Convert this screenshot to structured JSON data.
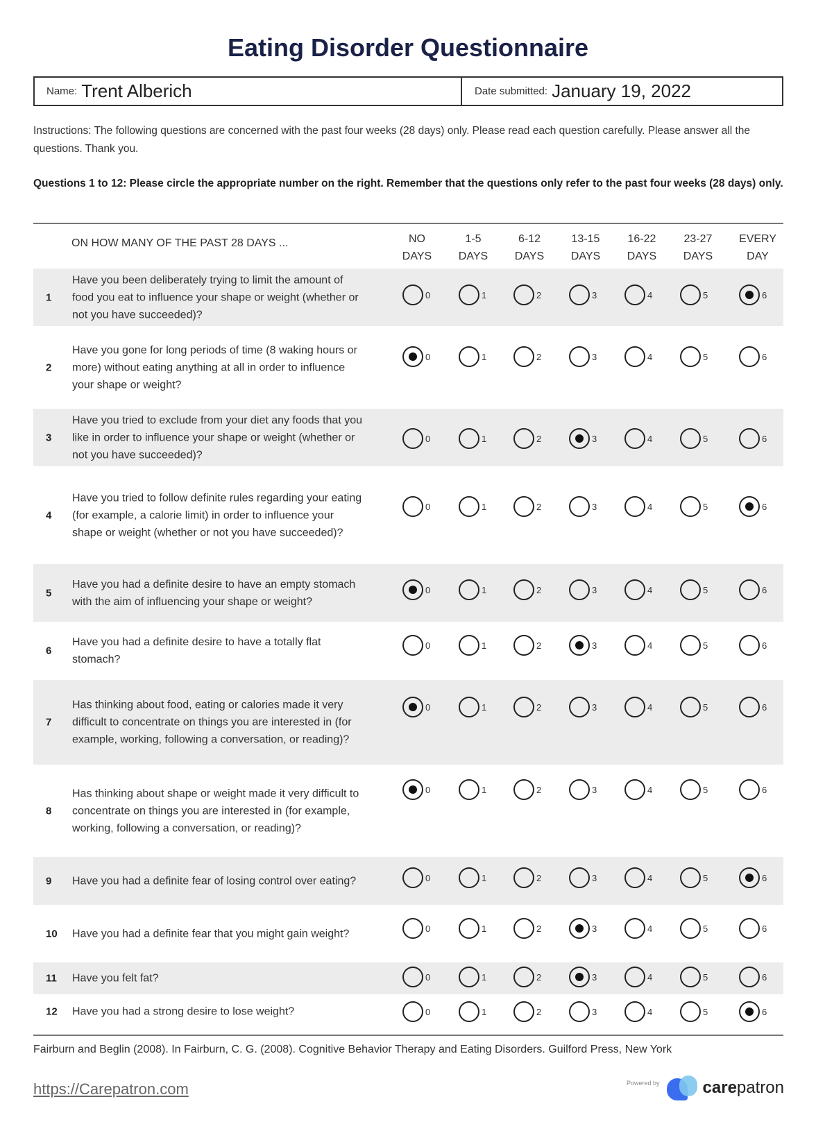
{
  "title": "Eating Disorder Questionnaire",
  "name_label": "Name:",
  "name_value": "Trent Alberich",
  "date_label": "Date submitted:",
  "date_value": "January 19, 2022",
  "instructions": "Instructions: The following questions are concerned with the past four weeks (28 days) only. Please read each question carefully. Please answer all the questions. Thank you.",
  "questions_heading": "Questions 1 to 12: Please circle the appropriate number on the right. Remember that the questions only refer to the past four weeks (28 days) only.",
  "table_header": "ON HOW MANY OF THE PAST 28 DAYS ...",
  "columns": [
    {
      "top": "NO",
      "bottom": "DAYS"
    },
    {
      "top": "1-5",
      "bottom": "DAYS"
    },
    {
      "top": "6-12",
      "bottom": "DAYS"
    },
    {
      "top": "13-15",
      "bottom": "DAYS"
    },
    {
      "top": "16-22",
      "bottom": "DAYS"
    },
    {
      "top": "23-27",
      "bottom": "DAYS"
    },
    {
      "top": "EVERY",
      "bottom": "DAY"
    }
  ],
  "option_values": [
    "0",
    "1",
    "2",
    "3",
    "4",
    "5",
    "6"
  ],
  "questions": [
    {
      "number": "1",
      "text": "Have you been deliberately trying to limit the amount of food you eat to influence your shape or weight (whether or not you have succeeded)?",
      "selected": 6
    },
    {
      "number": "2",
      "text": "Have you gone for long periods of time (8 waking hours or more) without eating anything at all in order to influence your shape or weight?",
      "selected": 0
    },
    {
      "number": "3",
      "text": "Have you tried to exclude from your diet any foods that you like in order to influence your shape or weight (whether or not you have succeeded)?",
      "selected": 3
    },
    {
      "number": "4",
      "text": "Have you tried to follow definite rules regarding your eating (for example, a calorie limit) in order to influence your shape or weight (whether or not you have succeeded)?",
      "selected": 6
    },
    {
      "number": "5",
      "text": "Have you had a definite desire to have an empty stomach with the aim of influencing your shape or weight?",
      "selected": 0
    },
    {
      "number": "6",
      "text": "Have you had a definite desire to have a totally flat stomach?",
      "selected": 3
    },
    {
      "number": "7",
      "text": "Has thinking about food, eating or calories made it very difficult to concentrate on things you are interested in (for example, working, following a conversation, or reading)?",
      "selected": 0
    },
    {
      "number": "8",
      "text": "Has thinking about shape or weight made it very difficult to concentrate on things you are interested in (for example, working, following a conversation, or reading)?",
      "selected": 0
    },
    {
      "number": "9",
      "text": "Have you had a definite fear of losing control over eating?",
      "selected": 6
    },
    {
      "number": "10",
      "text": "Have you had a definite fear that you might gain weight?",
      "selected": 3
    },
    {
      "number": "11",
      "text": "Have you felt fat?",
      "selected": 3
    },
    {
      "number": "12",
      "text": "Have you had a strong desire to lose weight?",
      "selected": 6
    }
  ],
  "citation": "Fairburn and Beglin (2008). In Fairburn, C. G. (2008). Cognitive Behavior Therapy and Eating Disorders. Guilford Press, New York",
  "footer_url": "https://Carepatron.com",
  "powered_by": "Powered by",
  "brand": {
    "bold": "care",
    "rest": "patron"
  },
  "colors": {
    "title": "#1a2147",
    "row_shade": "#ececec",
    "logo_blue": "#3b6df0",
    "logo_light": "#7fc6f0"
  }
}
